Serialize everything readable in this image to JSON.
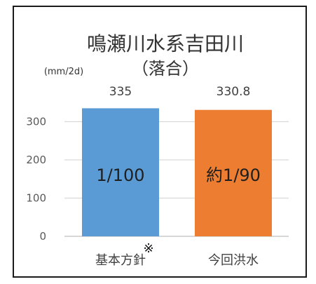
{
  "chart_data": {
    "type": "bar",
    "title": "鳴瀬川水系吉田川",
    "subtitle": "（落合）",
    "ylabel": "(mm/2d)",
    "xlabel": "",
    "ylim": [
      0,
      350
    ],
    "yticks": [
      0,
      100,
      200,
      300
    ],
    "categories": [
      "基本方針",
      "今回洪水"
    ],
    "values": [
      335,
      330.8
    ],
    "data_labels": [
      "335",
      "330.8"
    ],
    "bar_labels": [
      "1/100",
      "約1/90"
    ],
    "bar_colors": [
      "#5b9bd5",
      "#ed7d31"
    ],
    "grid": true,
    "legend": false,
    "note_mark": "※"
  }
}
